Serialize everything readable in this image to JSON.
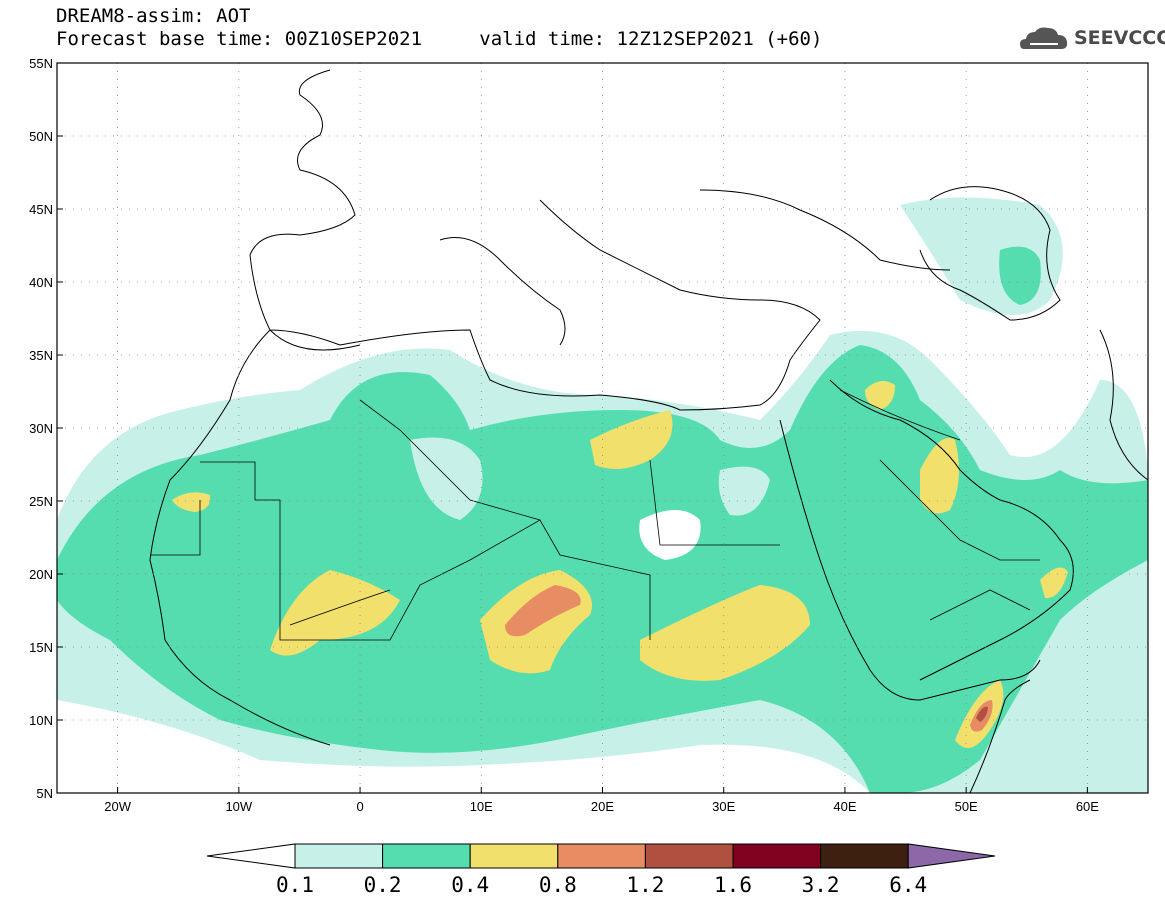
{
  "header": {
    "line1": "DREAM8-assim: AOT",
    "base_label": "Forecast base time: 00Z10SEP2021",
    "valid_label": "valid time: 12Z12SEP2021 (+60)"
  },
  "logo": {
    "text": "SEEVCCC",
    "icon": "cloud-icon"
  },
  "map": {
    "lat_labels": [
      "55N",
      "50N",
      "45N",
      "40N",
      "35N",
      "30N",
      "25N",
      "20N",
      "15N",
      "10N",
      "5N"
    ],
    "lon_labels": [
      "20W",
      "10W",
      "0",
      "10E",
      "20E",
      "30E",
      "40E",
      "50E",
      "60E"
    ],
    "extent": {
      "lon_min": -25,
      "lon_max": 65,
      "lat_min": 5,
      "lat_max": 55
    }
  },
  "legend": {
    "values": [
      "0.1",
      "0.2",
      "0.4",
      "0.8",
      "1.2",
      "1.6",
      "3.2",
      "6.4"
    ],
    "colors": [
      "#ffffff",
      "#c6f0e8",
      "#55ddb0",
      "#f2e06c",
      "#e88c64",
      "#b05040",
      "#800020",
      "#3d2010",
      "#8c68a8"
    ]
  }
}
